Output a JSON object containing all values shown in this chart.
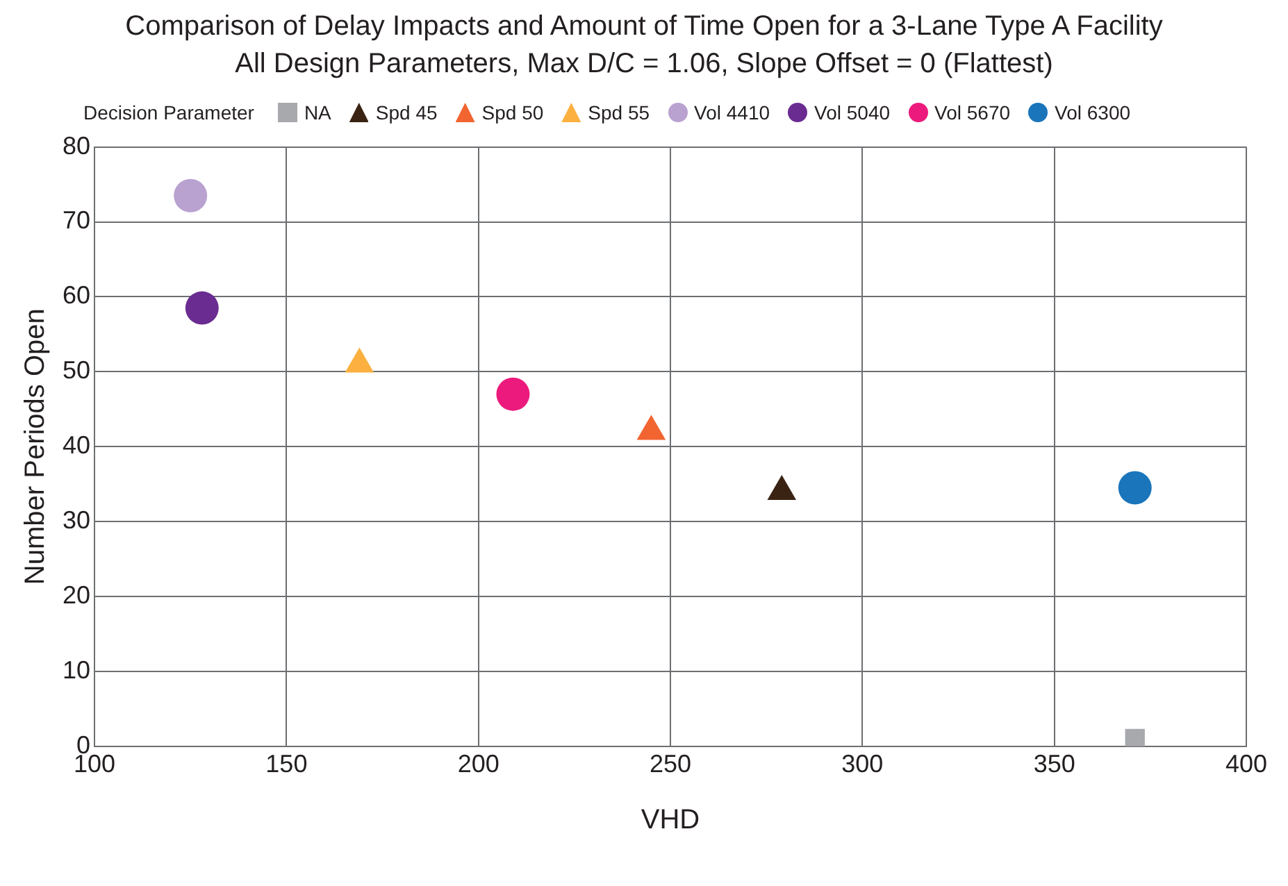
{
  "chart_data": {
    "type": "scatter",
    "title": "Comparison of Delay Impacts and Amount of  Time Open for a 3-Lane Type A Facility",
    "subtitle": "All Design Parameters, Max D/C = 1.06, Slope Offset = 0 (Flattest)",
    "xlabel": "VHD",
    "ylabel": "Number Periods Open",
    "legend_title": "Decision Parameter",
    "legend": "top",
    "grid": true,
    "xlim": [
      100,
      400
    ],
    "xticks": [
      100,
      150,
      200,
      250,
      300,
      350,
      400
    ],
    "ylim": [
      0,
      80
    ],
    "yticks": [
      0,
      10,
      20,
      30,
      40,
      50,
      60,
      70,
      80
    ],
    "series": [
      {
        "name": "NA",
        "color": "#a7a9ac",
        "marker": "square",
        "x": [
          371
        ],
        "values": [
          1
        ]
      },
      {
        "name": "Spd 45",
        "color": "#3b2314",
        "marker": "triangle",
        "x": [
          279
        ],
        "values": [
          34
        ]
      },
      {
        "name": "Spd 50",
        "color": "#f26430",
        "marker": "triangle",
        "x": [
          245
        ],
        "values": [
          42
        ]
      },
      {
        "name": "Spd 55",
        "color": "#fbb040",
        "marker": "triangle",
        "x": [
          169
        ],
        "values": [
          51
        ]
      },
      {
        "name": "Vol 4410",
        "color": "#b9a1d0",
        "marker": "circle",
        "x": [
          125
        ],
        "values": [
          73.5
        ]
      },
      {
        "name": "Vol 5040",
        "color": "#6a2c91",
        "marker": "circle",
        "x": [
          128
        ],
        "values": [
          58.5
        ]
      },
      {
        "name": "Vol 5670",
        "color": "#ec1a7c",
        "marker": "circle",
        "x": [
          209
        ],
        "values": [
          47
        ]
      },
      {
        "name": "Vol 6300",
        "color": "#1a75bb",
        "marker": "circle",
        "x": [
          371
        ],
        "values": [
          34.5
        ]
      }
    ]
  }
}
